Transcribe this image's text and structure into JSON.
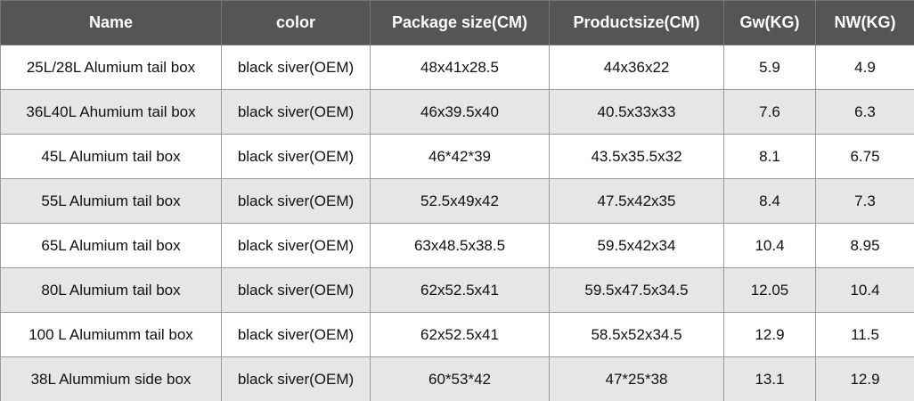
{
  "table": {
    "header": [
      "Name",
      "color",
      "Package size(CM)",
      "Productsize(CM)",
      "Gw(KG)",
      "NW(KG)"
    ],
    "rows": [
      [
        "25L/28L Alumium tail box",
        "black siver(OEM)",
        "48x41x28.5",
        "44x36x22",
        "5.9",
        "4.9"
      ],
      [
        "36L40L Ahumium tail box",
        "black siver(OEM)",
        "46x39.5x40",
        "40.5x33x33",
        "7.6",
        "6.3"
      ],
      [
        "45L Alumium tail box",
        "black siver(OEM)",
        "46*42*39",
        "43.5x35.5x32",
        "8.1",
        "6.75"
      ],
      [
        "55L Alumium tail box",
        "black siver(OEM)",
        "52.5x49x42",
        "47.5x42x35",
        "8.4",
        "7.3"
      ],
      [
        "65L Alumium tail box",
        "black siver(OEM)",
        "63x48.5x38.5",
        "59.5x42x34",
        "10.4",
        "8.95"
      ],
      [
        "80L Alumium tail box",
        "black siver(OEM)",
        "62x52.5x41",
        "59.5x47.5x34.5",
        "12.05",
        "10.4"
      ],
      [
        "100 L Alumiumm tail box",
        "black siver(OEM)",
        "62x52.5x41",
        "58.5x52x34.5",
        "12.9",
        "11.5"
      ],
      [
        "38L Alummium side box",
        "black siver(OEM)",
        "60*53*42",
        "47*25*38",
        "13.1",
        "12.9"
      ]
    ]
  }
}
